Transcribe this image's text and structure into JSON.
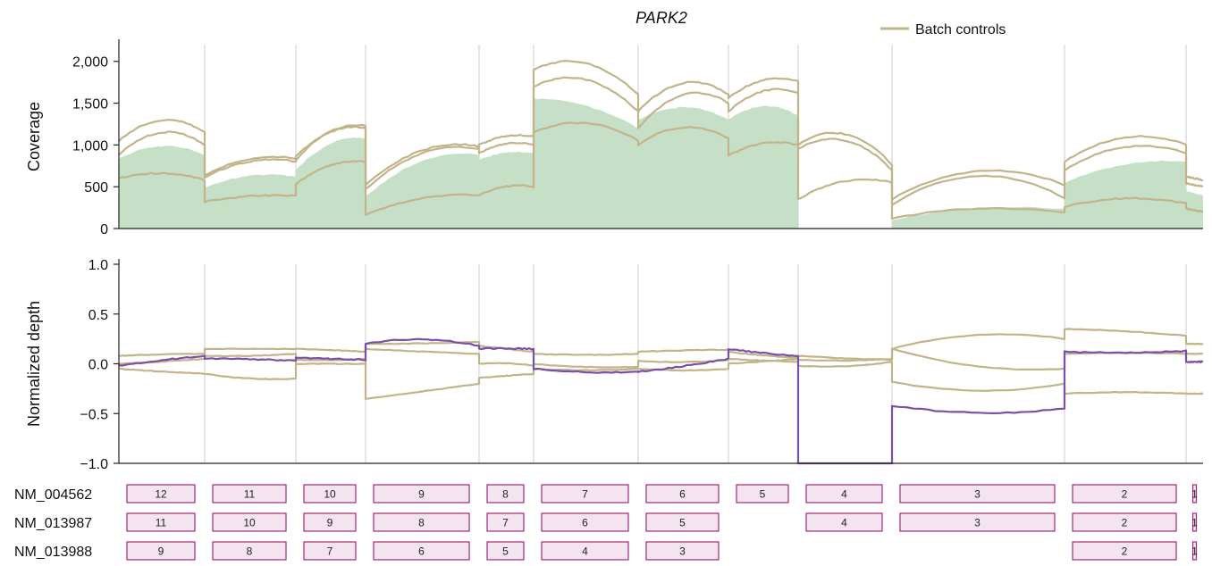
{
  "chart_data": [
    {
      "type": "area",
      "title": "PARK2",
      "ylabel": "Coverage",
      "xlabel": "",
      "ylim": [
        0,
        2200
      ],
      "yticks": [
        0,
        500,
        1000,
        1500,
        2000
      ],
      "ytick_labels": [
        "0",
        "500",
        "1,000",
        "1,500",
        "2,000"
      ],
      "legend": {
        "position": "top-right",
        "entries": [
          "Batch controls"
        ]
      },
      "grid": "vertical exon boundaries",
      "colors": {
        "sample_fill": "#c6e0c8",
        "batch_line": "#c2b48a"
      },
      "segments": [
        {
          "index": 1,
          "sample": [
            830,
            1120,
            880
          ],
          "batch": [
            [
              1050,
              1490,
              1150
            ],
            [
              880,
              1360,
              1000
            ],
            [
              600,
              730,
              580
            ]
          ]
        },
        {
          "index": 2,
          "sample": [
            490,
            710,
            620
          ],
          "batch": [
            [
              640,
              920,
              840
            ],
            [
              610,
              900,
              800
            ],
            [
              320,
              420,
              390
            ]
          ]
        },
        {
          "index": 3,
          "sample": [
            700,
            1140,
            1080
          ],
          "batch": [
            [
              860,
              1280,
              1200
            ],
            [
              820,
              1300,
              1230
            ],
            [
              530,
              850,
              800
            ]
          ]
        },
        {
          "index": 4,
          "sample": [
            380,
            990,
            880
          ],
          "batch": [
            [
              520,
              1120,
              980
            ],
            [
              470,
              1090,
              950
            ],
            [
              170,
              440,
              400
            ]
          ]
        },
        {
          "index": 5,
          "sample": [
            820,
            960,
            900
          ],
          "batch": [
            [
              1000,
              1160,
              1100
            ],
            [
              900,
              1080,
              1000
            ],
            [
              400,
              560,
              500
            ]
          ]
        },
        {
          "index": 6,
          "sample": [
            1550,
            1560,
            1200
          ],
          "batch": [
            [
              1900,
              2200,
              1600
            ],
            [
              1700,
              2010,
              1400
            ],
            [
              1150,
              1420,
              1050
            ]
          ]
        },
        {
          "index": 7,
          "sample": [
            1300,
            1600,
            1300
          ],
          "batch": [
            [
              1400,
              1980,
              1600
            ],
            [
              1200,
              1850,
              1500
            ],
            [
              1000,
              1380,
              1080
            ]
          ]
        },
        {
          "index": 8,
          "sample": [
            1300,
            1600,
            1350
          ],
          "batch": [
            [
              1560,
              1890,
              1760
            ],
            [
              1400,
              1780,
              1620
            ],
            [
              870,
              1100,
              1000
            ]
          ]
        },
        {
          "index": 9,
          "sample": [
            0,
            0,
            0
          ],
          "batch": [
            [
              1000,
              1380,
              760
            ],
            [
              950,
              1280,
              700
            ],
            [
              350,
              680,
              550
            ]
          ]
        },
        {
          "index": 10,
          "sample": [
            100,
            330,
            230
          ],
          "batch": [
            [
              350,
              940,
              520
            ],
            [
              280,
              940,
              360
            ],
            [
              120,
              320,
              190
            ]
          ]
        },
        {
          "index": 11,
          "sample": [
            550,
            860,
            800
          ],
          "batch": [
            [
              800,
              1280,
              1000
            ],
            [
              700,
              1150,
              900
            ],
            [
              260,
              440,
              300
            ]
          ]
        },
        {
          "index": 12,
          "sample": [
            450,
            420,
            400
          ],
          "batch": [
            [
              620,
              600,
              580
            ],
            [
              540,
              520,
              500
            ],
            [
              240,
              220,
              200
            ]
          ]
        }
      ]
    },
    {
      "type": "line",
      "title": "",
      "ylabel": "Normalized depth",
      "xlabel": "",
      "ylim": [
        -1.0,
        1.0
      ],
      "yticks": [
        -1.0,
        -0.5,
        0.0,
        0.5,
        1.0
      ],
      "ytick_labels": [
        "−1.0",
        "−0.5",
        "0.0",
        "0.5",
        "1.0"
      ],
      "grid": "vertical exon boundaries",
      "colors": {
        "sample_line": "#7b4fa8",
        "batch_line": "#c2b48a"
      },
      "segments": [
        {
          "index": 1,
          "sample": [
            -0.02,
            0.04,
            0.08
          ],
          "batch": [
            [
              0.08,
              0.1,
              0.1
            ],
            [
              0.0,
              0.02,
              0.05
            ],
            [
              -0.05,
              -0.08,
              -0.1
            ]
          ]
        },
        {
          "index": 2,
          "sample": [
            0.05,
            0.05,
            0.03
          ],
          "batch": [
            [
              0.15,
              0.15,
              0.15
            ],
            [
              0.08,
              0.07,
              0.1
            ],
            [
              -0.1,
              -0.17,
              -0.15
            ]
          ]
        },
        {
          "index": 3,
          "sample": [
            0.06,
            0.05,
            0.04
          ],
          "batch": [
            [
              0.15,
              0.14,
              0.12
            ],
            [
              0.0,
              0.0,
              0.0
            ],
            [
              0.04,
              0.03,
              0.05
            ]
          ]
        },
        {
          "index": 4,
          "sample": [
            0.2,
            0.3,
            0.18
          ],
          "batch": [
            [
              0.2,
              0.2,
              0.22
            ],
            [
              0.15,
              0.12,
              0.1
            ],
            [
              -0.35,
              -0.28,
              -0.2
            ]
          ]
        },
        {
          "index": 5,
          "sample": [
            0.15,
            0.16,
            0.15
          ],
          "batch": [
            [
              0.18,
              0.15,
              0.12
            ],
            [
              0.0,
              0.02,
              -0.02
            ],
            [
              -0.14,
              -0.12,
              -0.1
            ]
          ]
        },
        {
          "index": 6,
          "sample": [
            -0.05,
            -0.1,
            -0.08
          ],
          "batch": [
            [
              0.1,
              0.08,
              0.1
            ],
            [
              0.0,
              -0.05,
              -0.03
            ],
            [
              -0.05,
              -0.08,
              -0.05
            ]
          ]
        },
        {
          "index": 7,
          "sample": [
            -0.08,
            -0.03,
            0.05
          ],
          "batch": [
            [
              0.12,
              0.14,
              0.14
            ],
            [
              0.03,
              0.0,
              0.04
            ],
            [
              -0.05,
              -0.08,
              -0.05
            ]
          ]
        },
        {
          "index": 8,
          "sample": [
            0.15,
            0.1,
            0.08
          ],
          "batch": [
            [
              0.12,
              0.08,
              0.06
            ],
            [
              0.05,
              0.03,
              0.02
            ],
            [
              0.0,
              0.02,
              0.05
            ]
          ]
        },
        {
          "index": 9,
          "sample": [
            -1.0,
            -1.0,
            -1.0
          ],
          "batch": [
            [
              0.08,
              0.05,
              0.04
            ],
            [
              0.04,
              0.02,
              0.05
            ],
            [
              -0.02,
              -0.05,
              0.02
            ]
          ]
        },
        {
          "index": 10,
          "sample": [
            -0.42,
            -0.55,
            -0.45
          ],
          "batch": [
            [
              0.15,
              0.38,
              0.25
            ],
            [
              0.15,
              -0.1,
              -0.05
            ],
            [
              -0.18,
              -0.35,
              -0.2
            ]
          ]
        },
        {
          "index": 11,
          "sample": [
            0.12,
            0.1,
            0.13
          ],
          "batch": [
            [
              0.35,
              0.34,
              0.28
            ],
            [
              0.1,
              0.12,
              0.1
            ],
            [
              -0.3,
              -0.27,
              -0.3
            ]
          ]
        },
        {
          "index": 12,
          "sample": [
            0.02,
            0.02,
            0.02
          ],
          "batch": [
            [
              0.2,
              0.2,
              0.2
            ],
            [
              0.1,
              0.1,
              0.1
            ],
            [
              -0.3,
              -0.3,
              -0.3
            ]
          ]
        }
      ]
    }
  ],
  "legend_label": "Batch controls",
  "transcripts": [
    {
      "name": "NM_004562",
      "exons": [
        {
          "seg": 1,
          "label": "12"
        },
        {
          "seg": 2,
          "label": "11"
        },
        {
          "seg": 3,
          "label": "10"
        },
        {
          "seg": 4,
          "label": "9"
        },
        {
          "seg": 5,
          "label": "8"
        },
        {
          "seg": 6,
          "label": "7"
        },
        {
          "seg": 7,
          "label": "6"
        },
        {
          "seg": 8,
          "label": "5"
        },
        {
          "seg": 9,
          "label": "4"
        },
        {
          "seg": 10,
          "label": "3"
        },
        {
          "seg": 11,
          "label": "2"
        },
        {
          "seg": 12,
          "label": "1"
        }
      ]
    },
    {
      "name": "NM_013987",
      "exons": [
        {
          "seg": 1,
          "label": "11"
        },
        {
          "seg": 2,
          "label": "10"
        },
        {
          "seg": 3,
          "label": "9"
        },
        {
          "seg": 4,
          "label": "8"
        },
        {
          "seg": 5,
          "label": "7"
        },
        {
          "seg": 6,
          "label": "6"
        },
        {
          "seg": 7,
          "label": "5"
        },
        {
          "seg": 9,
          "label": "4"
        },
        {
          "seg": 10,
          "label": "3"
        },
        {
          "seg": 11,
          "label": "2"
        },
        {
          "seg": 12,
          "label": "1"
        }
      ]
    },
    {
      "name": "NM_013988",
      "exons": [
        {
          "seg": 1,
          "label": "9"
        },
        {
          "seg": 2,
          "label": "8"
        },
        {
          "seg": 3,
          "label": "7"
        },
        {
          "seg": 4,
          "label": "6"
        },
        {
          "seg": 5,
          "label": "5"
        },
        {
          "seg": 6,
          "label": "4"
        },
        {
          "seg": 7,
          "label": "3"
        },
        {
          "seg": 11,
          "label": "2"
        },
        {
          "seg": 12,
          "label": "1"
        }
      ]
    }
  ]
}
